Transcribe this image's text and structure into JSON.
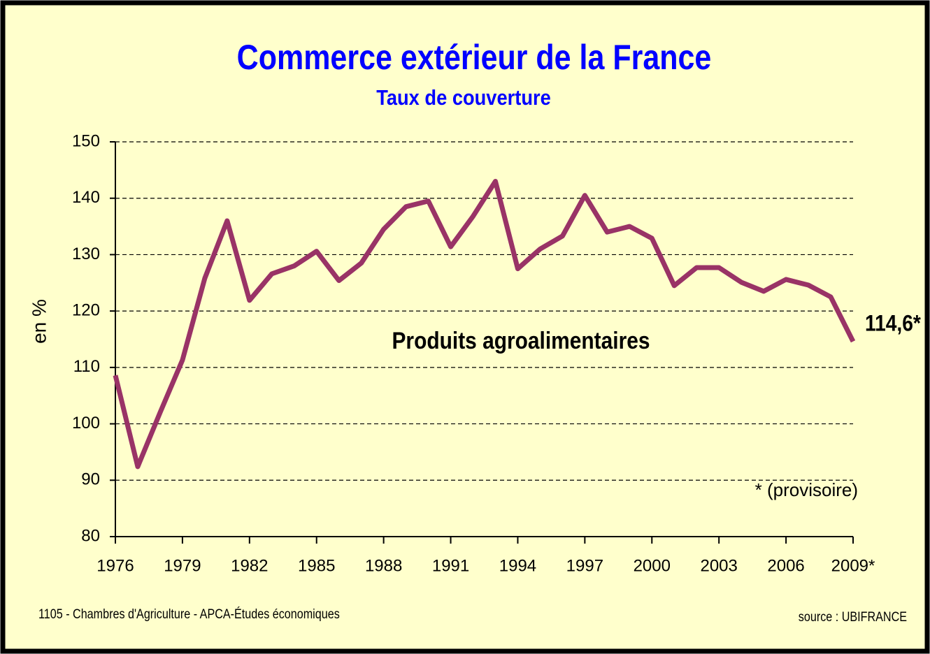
{
  "chart_data": {
    "type": "line",
    "title": "Commerce extérieur de la France",
    "subtitle": "Taux de couverture",
    "y_label": "en %",
    "x": [
      1976,
      1977,
      1978,
      1979,
      1980,
      1981,
      1982,
      1983,
      1984,
      1985,
      1986,
      1987,
      1988,
      1989,
      1990,
      1991,
      1992,
      1993,
      1994,
      1995,
      1996,
      1997,
      1998,
      1999,
      2000,
      2001,
      2002,
      2003,
      2004,
      2005,
      2006,
      2007,
      2008,
      2009
    ],
    "series": [
      {
        "name": "Produits agroalimentaires",
        "color": "#993366",
        "values": [
          108.6,
          92.4,
          102,
          111.3,
          125.8,
          136,
          121.9,
          126.6,
          128,
          130.6,
          125.4,
          128.5,
          134.5,
          138.5,
          139.5,
          131.4,
          136.8,
          143,
          127.5,
          131,
          133.3,
          140.5,
          134,
          135,
          132.9,
          124.5,
          127.7,
          127.7,
          125.1,
          123.5,
          125.6,
          124.6,
          122.5,
          114.6
        ]
      }
    ],
    "end_label": "114,6*",
    "note": "* (provisoire)",
    "footer_left": "1105 - Chambres d'Agriculture - APCA-Études économiques",
    "footer_right": "source : UBIFRANCE",
    "xlim": [
      1976,
      2009
    ],
    "xticks": [
      1976,
      1979,
      1982,
      1985,
      1988,
      1991,
      1994,
      1997,
      2000,
      2003,
      2006,
      {
        "value": 2009,
        "label": "2009*"
      }
    ],
    "ylim": [
      80,
      150
    ],
    "yticks": [
      80,
      90,
      100,
      110,
      120,
      130,
      140,
      150
    ],
    "grid": true
  }
}
